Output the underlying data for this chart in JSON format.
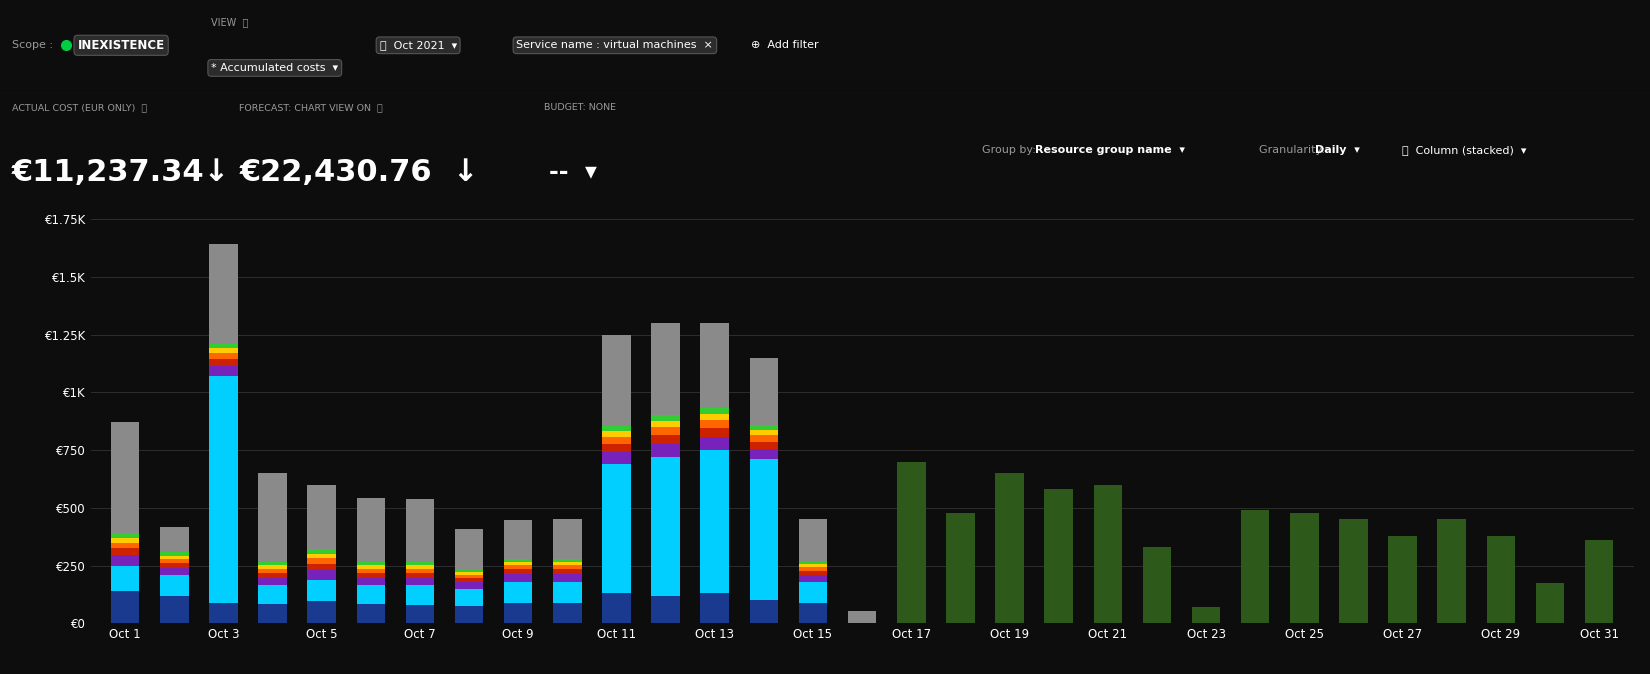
{
  "bg_color": "#0d0d0d",
  "toolbar_color": "#1e1e1e",
  "chart_bg_color": "#0d0d0d",
  "text_color": "#ffffff",
  "subtext_color": "#999999",
  "grid_color": "#2d2d2d",
  "toolbar": {
    "scope_label": "Scope : ",
    "scope_dot": "#00cc44",
    "scope_name": "INEXISTENCE",
    "view_label": "VIEW  ⓘ",
    "view_value": "* Accumulated costs  ▾",
    "date_label": "📅  Oct 2021  ▾",
    "filter_label": "Service name : virtual machines  ×",
    "add_filter": "⊕  Add filter"
  },
  "stats": {
    "actual_label": "ACTUAL COST (EUR ONLY)  ⓘ",
    "actual_value": "€11,237.34↓",
    "forecast_label": "FORECAST: CHART VIEW ON  ⓘ",
    "forecast_value": "€22,430.76  ↓",
    "budget_label": "BUDGET: NONE",
    "budget_value": "--  ▾",
    "groupby_label": "Group by: ",
    "groupby_value": "Resource group name  ▾",
    "gran_label": "Granularity: ",
    "gran_value": "Daily  ▾",
    "col_icon": "📊",
    "col_value": "Column (stacked)  ▾"
  },
  "ylim": [
    0,
    1750
  ],
  "yticks": [
    0,
    250,
    500,
    750,
    1000,
    1250,
    1500,
    1750
  ],
  "ytick_labels": [
    "€0",
    "€250",
    "€500",
    "€750",
    "€1K",
    "€1.25K",
    "€1.5K",
    "€1.75K"
  ],
  "n_days": 31,
  "xtick_positions": [
    1,
    3,
    5,
    7,
    9,
    11,
    13,
    15,
    17,
    19,
    21,
    23,
    25,
    27,
    29,
    31
  ],
  "xtick_labels": [
    "Oct 1",
    "Oct 3",
    "Oct 5",
    "Oct 7",
    "Oct 9",
    "Oct 11",
    "Oct 13",
    "Oct 15",
    "Oct 17",
    "Oct 19",
    "Oct 21",
    "Oct 23",
    "Oct 25",
    "Oct 27",
    "Oct 29",
    "Oct 31"
  ],
  "layer_order": [
    "dark_blue",
    "cyan",
    "purple",
    "dark_red",
    "orange",
    "yellow",
    "green_bright",
    "gray",
    "dark_green"
  ],
  "layer_colors": {
    "dark_blue": "#1a3a8f",
    "cyan": "#00cfff",
    "purple": "#7722bb",
    "dark_red": "#cc2200",
    "orange": "#ff6600",
    "yellow": "#ffcc00",
    "green_bright": "#33cc33",
    "gray": "#8a8a8a",
    "dark_green": "#2d5a1b"
  },
  "stacked_data": {
    "dark_blue": [
      140,
      120,
      90,
      85,
      95,
      85,
      80,
      75,
      90,
      90,
      130,
      120,
      130,
      100,
      90,
      0,
      0,
      0,
      0,
      0,
      0,
      0,
      0,
      0,
      0,
      0,
      0,
      0,
      0,
      0,
      0
    ],
    "cyan": [
      110,
      90,
      980,
      80,
      95,
      80,
      85,
      75,
      90,
      90,
      560,
      600,
      620,
      610,
      90,
      0,
      0,
      0,
      0,
      0,
      0,
      0,
      0,
      0,
      0,
      0,
      0,
      0,
      0,
      0,
      0
    ],
    "purple": [
      45,
      30,
      45,
      32,
      40,
      32,
      32,
      28,
      32,
      32,
      50,
      55,
      55,
      45,
      28,
      0,
      0,
      0,
      0,
      0,
      0,
      0,
      0,
      0,
      0,
      0,
      0,
      0,
      0,
      0,
      0
    ],
    "dark_red": [
      30,
      22,
      30,
      22,
      28,
      22,
      22,
      18,
      22,
      22,
      35,
      40,
      40,
      32,
      20,
      0,
      0,
      0,
      0,
      0,
      0,
      0,
      0,
      0,
      0,
      0,
      0,
      0,
      0,
      0,
      0
    ],
    "orange": [
      25,
      18,
      25,
      18,
      24,
      18,
      18,
      14,
      18,
      18,
      30,
      34,
      34,
      28,
      16,
      0,
      0,
      0,
      0,
      0,
      0,
      0,
      0,
      0,
      0,
      0,
      0,
      0,
      0,
      0,
      0
    ],
    "yellow": [
      20,
      14,
      20,
      14,
      20,
      14,
      14,
      11,
      14,
      14,
      26,
      28,
      28,
      22,
      12,
      0,
      0,
      0,
      0,
      0,
      0,
      0,
      0,
      0,
      0,
      0,
      0,
      0,
      0,
      0,
      0
    ],
    "green_bright": [
      20,
      14,
      20,
      14,
      20,
      14,
      14,
      11,
      14,
      14,
      25,
      27,
      27,
      21,
      12,
      0,
      0,
      0,
      0,
      0,
      0,
      0,
      0,
      0,
      0,
      0,
      0,
      0,
      0,
      0,
      0
    ],
    "gray": [
      480,
      110,
      430,
      385,
      278,
      278,
      275,
      178,
      168,
      170,
      394,
      396,
      366,
      292,
      182,
      55,
      0,
      0,
      0,
      0,
      0,
      0,
      0,
      0,
      0,
      0,
      0,
      0,
      0,
      0,
      0
    ],
    "dark_green": [
      0,
      0,
      0,
      0,
      0,
      0,
      0,
      0,
      0,
      0,
      0,
      0,
      0,
      0,
      0,
      0,
      700,
      480,
      650,
      580,
      600,
      330,
      70,
      490,
      480,
      450,
      380,
      450,
      380,
      175,
      360
    ]
  },
  "bar_width": 0.58
}
